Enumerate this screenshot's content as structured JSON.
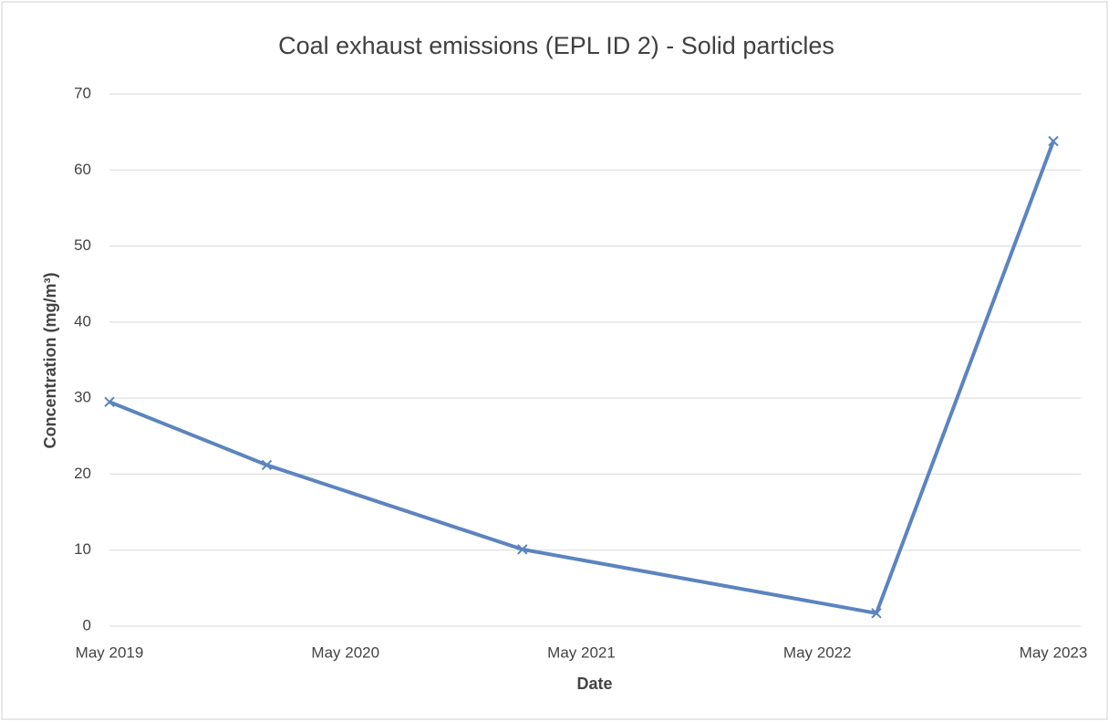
{
  "chart_data": {
    "type": "line",
    "title": "Coal exhaust emissions (EPL ID 2) - Solid particles",
    "x_label": "Date",
    "y_label": "Concentration (mg/m³)",
    "x": [
      "2019-05",
      "2020-01",
      "2021-02",
      "2022-08",
      "2023-05"
    ],
    "values": [
      29.5,
      21.2,
      10.1,
      1.7,
      63.8
    ],
    "color": "#5b84c0",
    "marker": "x",
    "xlim": [
      "2019-05",
      "2023-05"
    ],
    "xticks": [
      {
        "value": "2019-05",
        "label": "May 2019"
      },
      {
        "value": "2020-05",
        "label": "May 2020"
      },
      {
        "value": "2021-05",
        "label": "May 2021"
      },
      {
        "value": "2022-05",
        "label": "May 2022"
      },
      {
        "value": "2023-05",
        "label": "May 2023"
      }
    ],
    "ylim": [
      0,
      70
    ],
    "yticks": [
      0,
      10,
      20,
      30,
      40,
      50,
      60,
      70
    ],
    "grid": true
  }
}
